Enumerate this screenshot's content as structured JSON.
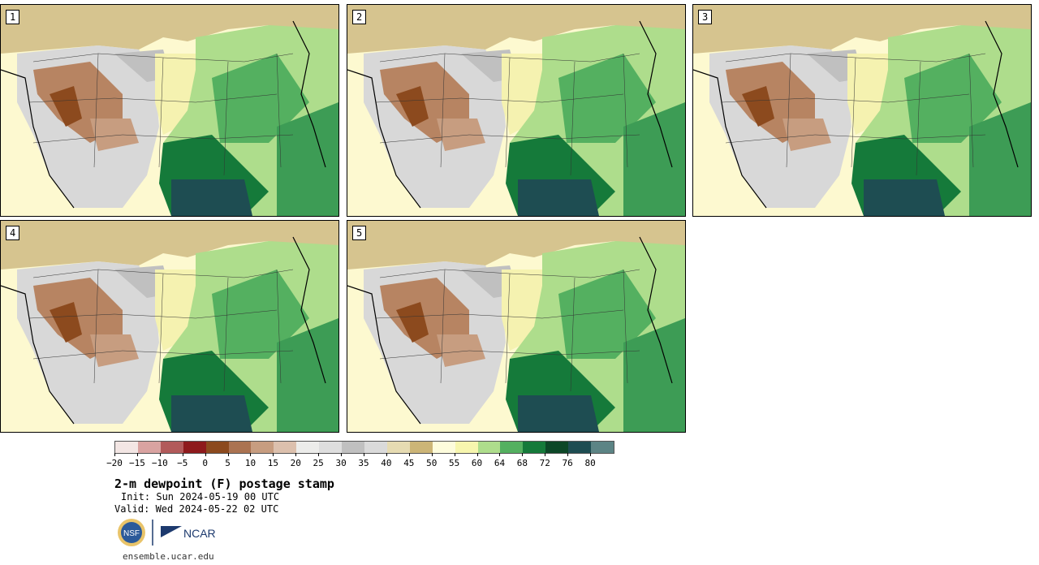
{
  "panels": [
    {
      "label": "1"
    },
    {
      "label": "2"
    },
    {
      "label": "3"
    },
    {
      "label": "4"
    },
    {
      "label": "5"
    }
  ],
  "colorbar": {
    "colors": [
      "#f3e6e4",
      "#d9a3a1",
      "#b25a5a",
      "#8e1a1c",
      "#8c4a1e",
      "#ab7351",
      "#c79d80",
      "#dcc0ad",
      "#ececea",
      "#dedede",
      "#c0c0c0",
      "#dadada",
      "#e6dbb2",
      "#ccb577",
      "#fdfcdc",
      "#f7f6ae",
      "#aedd8c",
      "#54b060",
      "#157a3a",
      "#0c4727",
      "#1e4d52",
      "#5c8485"
    ],
    "tick_labels": [
      "−20",
      "−15",
      "−10",
      "−5",
      "0",
      "5",
      "10",
      "15",
      "20",
      "25",
      "30",
      "35",
      "40",
      "45",
      "50",
      "55",
      "60",
      "64",
      "68",
      "72",
      "76",
      "80"
    ]
  },
  "title": "2-m dewpoint (F) postage stamp",
  "init": "Init: Sun 2024-05-19 00 UTC",
  "valid": "Valid: Wed 2024-05-22 02 UTC",
  "logos": {
    "nsf": "NSF",
    "ncar": "NCAR"
  },
  "url": "ensemble.ucar.edu"
}
